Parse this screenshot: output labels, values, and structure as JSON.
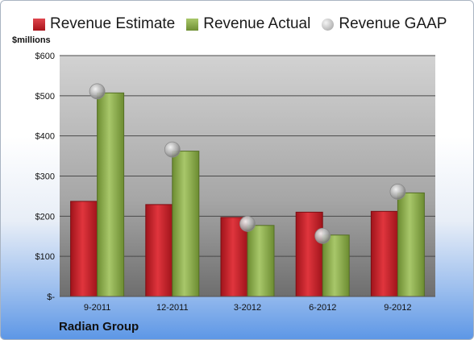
{
  "legend": {
    "estimate_label": "Revenue Estimate",
    "actual_label": "Revenue Actual",
    "gaap_label": "Revenue GAAP"
  },
  "y_unit": "$millions",
  "company": "Radian Group",
  "colors": {
    "estimate": "#c81e27",
    "actual": "#8fb050",
    "gaap": "#b8b8b8"
  },
  "chart_data": {
    "type": "bar",
    "categories": [
      "9-2011",
      "12-2011",
      "3-2012",
      "6-2012",
      "9-2012"
    ],
    "series": [
      {
        "name": "Revenue Estimate",
        "kind": "bar",
        "values": [
          237,
          229,
          197,
          210,
          212
        ]
      },
      {
        "name": "Revenue Actual",
        "kind": "bar",
        "values": [
          507,
          362,
          177,
          153,
          258
        ]
      },
      {
        "name": "Revenue GAAP",
        "kind": "marker",
        "values": [
          511,
          366,
          181,
          151,
          261
        ]
      }
    ],
    "ylabel": "$millions",
    "ylim": [
      0,
      600
    ],
    "yticks": [
      0,
      100,
      200,
      300,
      400,
      500,
      600
    ],
    "ytick_labels": [
      "$-",
      "$100",
      "$200",
      "$300",
      "$400",
      "$500",
      "$600"
    ],
    "grid": true,
    "legend_position": "top"
  }
}
